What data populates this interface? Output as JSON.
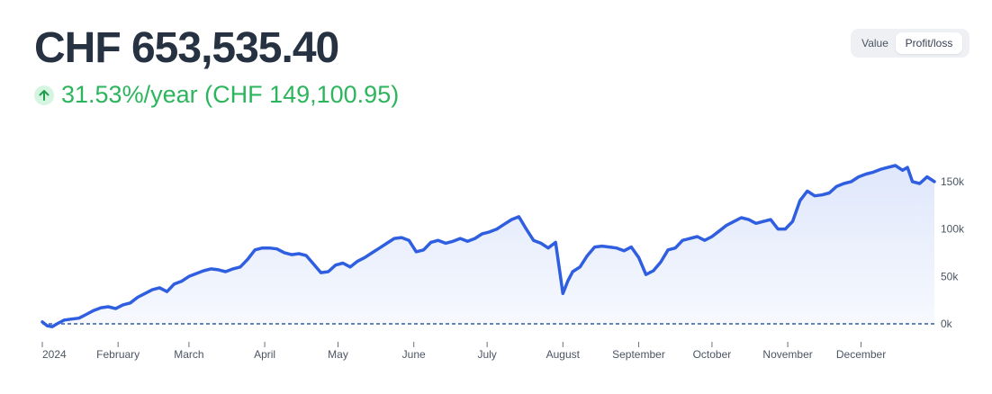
{
  "header": {
    "total_value": "CHF 653,535.40",
    "change_text": "31.53%/year (CHF 149,100.95)",
    "change_icon": "arrow-up-icon"
  },
  "toggle": {
    "options": [
      "Value",
      "Profit/loss"
    ],
    "selected": "Profit/loss"
  },
  "colors": {
    "line": "#2f5fe0",
    "positive": "#2db55d",
    "baseline": "#2f5fa8"
  },
  "chart_data": {
    "type": "area",
    "title": "",
    "xlabel": "",
    "ylabel": "",
    "x_ticks": [
      "2024",
      "February",
      "March",
      "April",
      "May",
      "June",
      "July",
      "August",
      "September",
      "October",
      "November",
      "December"
    ],
    "y_ticks": [
      "0k",
      "50k",
      "100k",
      "150k"
    ],
    "y_tick_values": [
      0,
      50000,
      100000,
      150000
    ],
    "ylim": [
      -8000,
      175000
    ],
    "grid": false,
    "series": [
      {
        "dates": [
          "2024-01-01",
          "2024-01-03",
          "2024-01-05",
          "2024-01-07",
          "2024-01-10",
          "2024-01-13",
          "2024-01-16",
          "2024-01-19",
          "2024-01-22",
          "2024-01-25",
          "2024-01-28",
          "2024-01-31",
          "2024-02-03",
          "2024-02-06",
          "2024-02-09",
          "2024-02-12",
          "2024-02-15",
          "2024-02-18",
          "2024-02-21",
          "2024-02-24",
          "2024-02-27",
          "2024-03-01",
          "2024-03-04",
          "2024-03-07",
          "2024-03-10",
          "2024-03-13",
          "2024-03-16",
          "2024-03-19",
          "2024-03-22",
          "2024-03-25",
          "2024-03-28",
          "2024-03-31",
          "2024-04-03",
          "2024-04-06",
          "2024-04-09",
          "2024-04-12",
          "2024-04-15",
          "2024-04-18",
          "2024-04-21",
          "2024-04-24",
          "2024-04-27",
          "2024-04-30",
          "2024-05-03",
          "2024-05-06",
          "2024-05-09",
          "2024-05-12",
          "2024-05-15",
          "2024-05-18",
          "2024-05-21",
          "2024-05-24",
          "2024-05-27",
          "2024-05-30",
          "2024-06-02",
          "2024-06-05",
          "2024-06-08",
          "2024-06-11",
          "2024-06-14",
          "2024-06-17",
          "2024-06-20",
          "2024-06-23",
          "2024-06-26",
          "2024-06-29",
          "2024-07-02",
          "2024-07-05",
          "2024-07-08",
          "2024-07-11",
          "2024-07-14",
          "2024-07-17",
          "2024-07-20",
          "2024-07-23",
          "2024-07-26",
          "2024-07-29",
          "2024-08-01",
          "2024-08-03",
          "2024-08-05",
          "2024-08-08",
          "2024-08-11",
          "2024-08-14",
          "2024-08-17",
          "2024-08-20",
          "2024-08-23",
          "2024-08-26",
          "2024-08-29",
          "2024-09-01",
          "2024-09-04",
          "2024-09-07",
          "2024-09-10",
          "2024-09-13",
          "2024-09-16",
          "2024-09-19",
          "2024-09-22",
          "2024-09-25",
          "2024-09-28",
          "2024-10-01",
          "2024-10-04",
          "2024-10-07",
          "2024-10-10",
          "2024-10-13",
          "2024-10-16",
          "2024-10-19",
          "2024-10-22",
          "2024-10-25",
          "2024-10-28",
          "2024-10-31",
          "2024-11-03",
          "2024-11-06",
          "2024-11-09",
          "2024-11-12",
          "2024-11-15",
          "2024-11-18",
          "2024-11-21",
          "2024-11-24",
          "2024-11-27",
          "2024-11-30",
          "2024-12-03",
          "2024-12-06",
          "2024-12-09",
          "2024-12-12",
          "2024-12-15",
          "2024-12-18",
          "2024-12-20",
          "2024-12-22",
          "2024-12-25",
          "2024-12-28",
          "2024-12-31"
        ],
        "values": [
          2000,
          -2000,
          -3000,
          0,
          4000,
          5000,
          6000,
          10000,
          14000,
          17000,
          18000,
          16000,
          20000,
          22000,
          28000,
          32000,
          36000,
          38000,
          34000,
          42000,
          45000,
          50000,
          53000,
          56000,
          58000,
          57000,
          55000,
          58000,
          60000,
          68000,
          78000,
          80000,
          80000,
          79000,
          75000,
          73000,
          74000,
          72000,
          63000,
          54000,
          55000,
          62000,
          64000,
          60000,
          66000,
          70000,
          75000,
          80000,
          85000,
          90000,
          91000,
          88000,
          76000,
          78000,
          86000,
          88000,
          85000,
          87000,
          90000,
          87000,
          90000,
          95000,
          97000,
          100000,
          105000,
          110000,
          113000,
          100000,
          88000,
          85000,
          80000,
          86000,
          32000,
          45000,
          55000,
          60000,
          72000,
          81000,
          82000,
          81000,
          80000,
          77000,
          81000,
          70000,
          52000,
          56000,
          65000,
          78000,
          80000,
          88000,
          90000,
          92000,
          88000,
          92000,
          98000,
          104000,
          108000,
          112000,
          110000,
          106000,
          108000,
          110000,
          100000,
          100000,
          108000,
          130000,
          140000,
          135000,
          136000,
          138000,
          145000,
          148000,
          150000,
          155000,
          158000,
          160000,
          163000,
          165000,
          167000,
          162000,
          165000,
          150000,
          148000,
          155000,
          150000
        ]
      }
    ]
  }
}
